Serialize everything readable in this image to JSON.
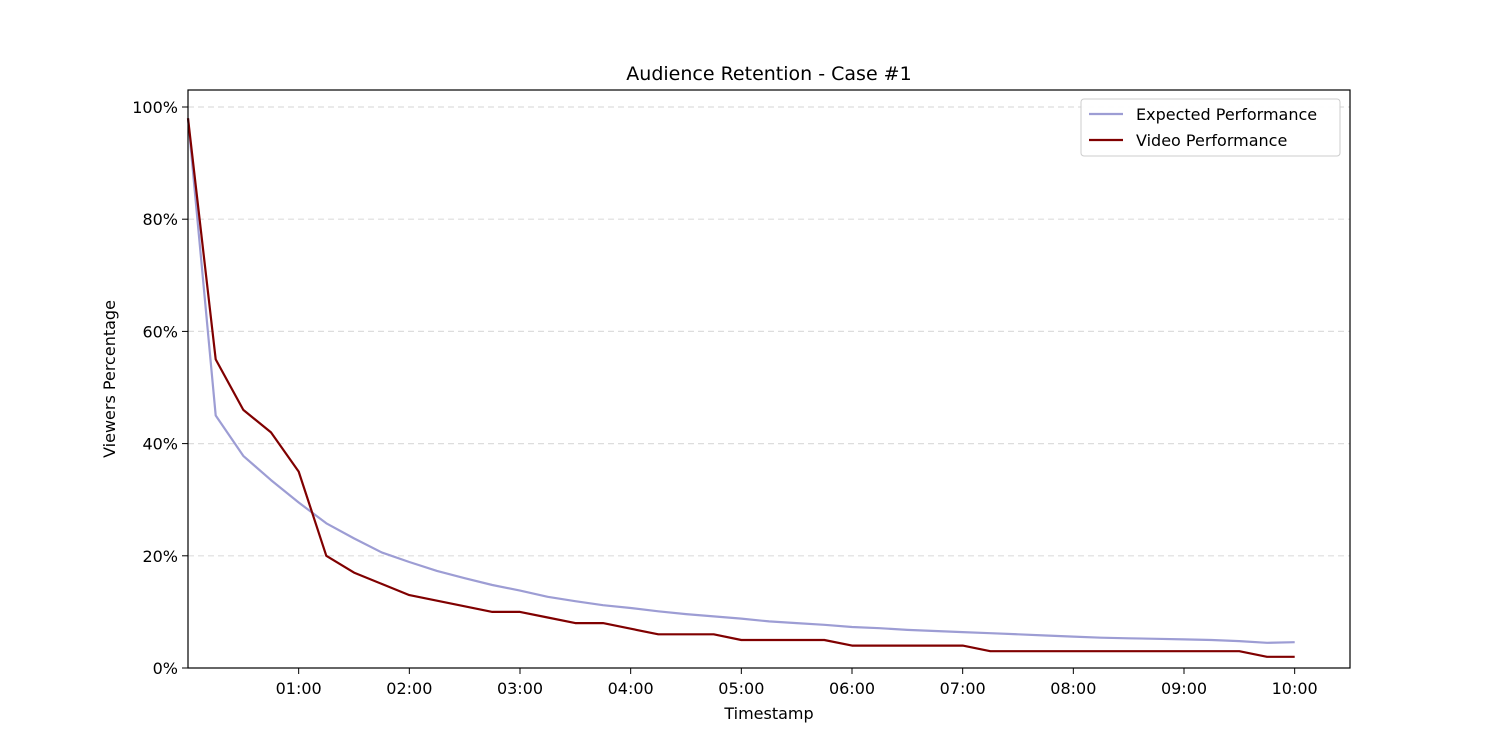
{
  "chart_data": {
    "type": "line",
    "title": "Audience Retention - Case #1",
    "xlabel": "Timestamp",
    "ylabel": "Viewers Percentage",
    "xlim": [
      0,
      630
    ],
    "ylim": [
      0,
      100
    ],
    "xticks": [
      60,
      120,
      180,
      240,
      300,
      360,
      420,
      480,
      540,
      600
    ],
    "xtick_labels": [
      "01:00",
      "02:00",
      "03:00",
      "04:00",
      "05:00",
      "06:00",
      "07:00",
      "08:00",
      "09:00",
      "10:00"
    ],
    "yticks": [
      0,
      20,
      40,
      60,
      80,
      100
    ],
    "ytick_labels": [
      "0%",
      "20%",
      "40%",
      "60%",
      "80%",
      "100%"
    ],
    "grid": "y-dashed",
    "legend_position": "top-right",
    "x": [
      0,
      15,
      30,
      45,
      60,
      75,
      90,
      105,
      120,
      135,
      150,
      165,
      180,
      195,
      210,
      225,
      240,
      255,
      270,
      285,
      300,
      315,
      330,
      345,
      360,
      375,
      390,
      405,
      420,
      435,
      450,
      465,
      480,
      495,
      510,
      525,
      540,
      555,
      570,
      585,
      600
    ],
    "series": [
      {
        "name": "Expected Performance",
        "color": "#9d9dd4",
        "values": [
          98,
          45,
          37.8,
          33.5,
          29.5,
          25.8,
          23.1,
          20.6,
          18.9,
          17.3,
          16,
          14.8,
          13.8,
          12.7,
          11.9,
          11.2,
          10.7,
          10.1,
          9.6,
          9.2,
          8.8,
          8.3,
          8.0,
          7.7,
          7.3,
          7.1,
          6.8,
          6.6,
          6.4,
          6.2,
          6.0,
          5.8,
          5.6,
          5.4,
          5.3,
          5.2,
          5.1,
          5.0,
          4.8,
          4.5,
          4.6
        ]
      },
      {
        "name": "Video Performance",
        "color": "#800000",
        "values": [
          98,
          55,
          46,
          42,
          35,
          20,
          17,
          15,
          13,
          12,
          11,
          10,
          10,
          9,
          8,
          8,
          7,
          6,
          6,
          6,
          5,
          5,
          5,
          5,
          4,
          4,
          4,
          4,
          4,
          3,
          3,
          3,
          3,
          3,
          3,
          3,
          3,
          3,
          3,
          2,
          2
        ]
      }
    ]
  }
}
